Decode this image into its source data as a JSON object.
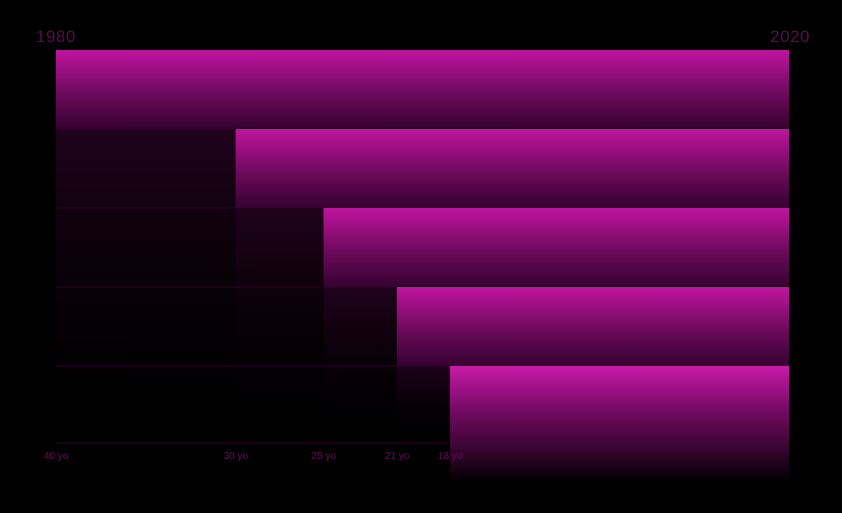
{
  "colors": {
    "background": "#000000",
    "bar_top": "#c0149f",
    "bar_bottom": "#0b000a",
    "label": "#6a0c5e",
    "gridline": "#2b0527"
  },
  "chart_data": {
    "type": "bar",
    "orientation": "horizontal-stacked-steps",
    "x_start_label": "1980",
    "x_end_label": "2020",
    "xlim": [
      1980,
      2020
    ],
    "categories": [
      "40 yo",
      "30 yo",
      "25 yo",
      "21 yo",
      "18 yo"
    ],
    "start_years": [
      1980,
      1989.8,
      1994.6,
      1998.6,
      2001.5
    ],
    "end_year": 2020,
    "grid": false
  }
}
